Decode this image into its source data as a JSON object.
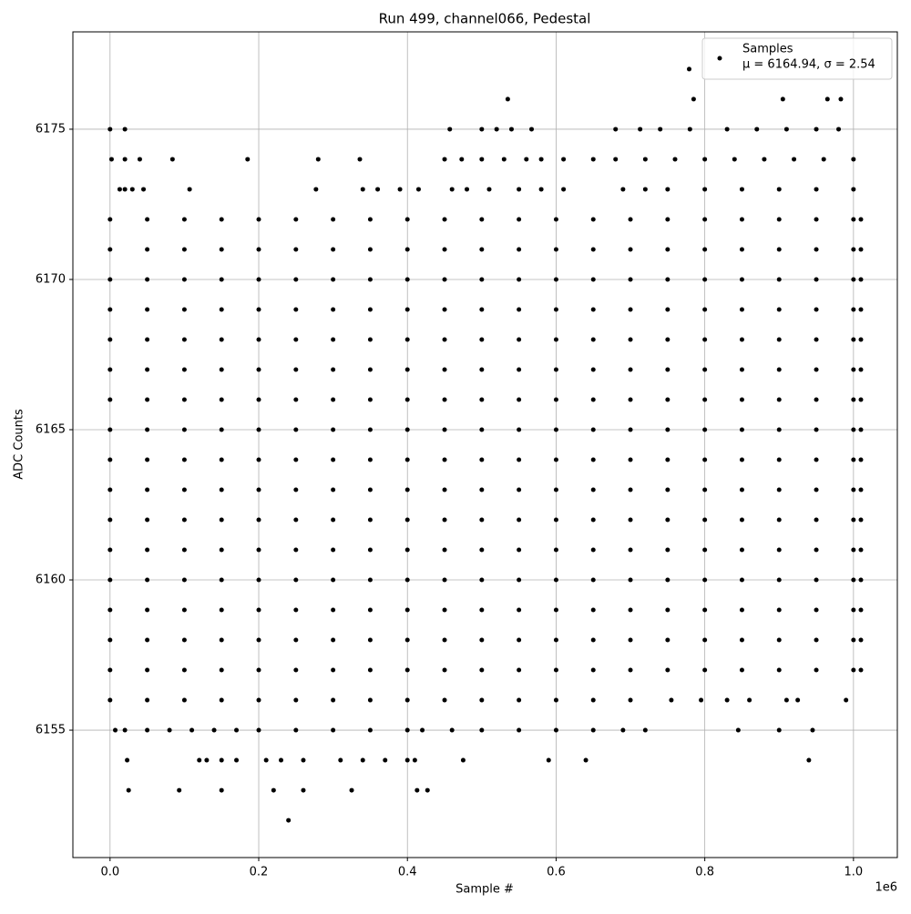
{
  "chart_data": {
    "type": "scatter",
    "title": "Run 499, channel066, Pedestal",
    "xlabel": "Sample #",
    "ylabel": "ADC Counts",
    "x_offset_label": "1e6",
    "xlim": [
      -0.05,
      1.059
    ],
    "ylim": [
      6150.76,
      6178.24
    ],
    "xticks": [
      {
        "value": 0,
        "label": "0.0"
      },
      0.2,
      0.4,
      0.6,
      0.8,
      {
        "value": 1,
        "label": "1.0"
      }
    ],
    "yticks": [
      6155,
      6160,
      6165,
      6170,
      6175
    ],
    "grid": true,
    "legend": "upper right",
    "legend_note": "μ = 6164.94, σ = 2.54",
    "series": [
      {
        "name": "Samples",
        "color": "#000000",
        "x": [
          0,
          0.05,
          0.1,
          0.15,
          0.2,
          0.25,
          0.3,
          0.35,
          0.4,
          0.45,
          0.5,
          0.55,
          0.6,
          0.65,
          0.7,
          0.75,
          0.8,
          0.85,
          0.9,
          0.95,
          1,
          1.01,
          0,
          0.05,
          0.1,
          0.15,
          0.2,
          0.25,
          0.3,
          0.35,
          0.4,
          0.45,
          0.5,
          0.55,
          0.6,
          0.65,
          0.7,
          0.75,
          0.8,
          0.85,
          0.9,
          0.95,
          1,
          1.01,
          0,
          0.05,
          0.1,
          0.15,
          0.2,
          0.25,
          0.3,
          0.35,
          0.4,
          0.45,
          0.5,
          0.55,
          0.6,
          0.65,
          0.7,
          0.75,
          0.8,
          0.85,
          0.9,
          0.95,
          1,
          1.01,
          0,
          0.05,
          0.1,
          0.15,
          0.2,
          0.25,
          0.3,
          0.35,
          0.4,
          0.45,
          0.5,
          0.55,
          0.6,
          0.65,
          0.7,
          0.75,
          0.8,
          0.85,
          0.9,
          0.95,
          1,
          1.01,
          0,
          0.05,
          0.1,
          0.15,
          0.2,
          0.25,
          0.3,
          0.35,
          0.4,
          0.45,
          0.5,
          0.55,
          0.6,
          0.65,
          0.7,
          0.75,
          0.8,
          0.85,
          0.9,
          0.95,
          1,
          1.01,
          0,
          0.05,
          0.1,
          0.15,
          0.2,
          0.25,
          0.3,
          0.35,
          0.4,
          0.45,
          0.5,
          0.55,
          0.6,
          0.65,
          0.7,
          0.75,
          0.8,
          0.85,
          0.9,
          0.95,
          1,
          1.01,
          0,
          0.05,
          0.1,
          0.15,
          0.2,
          0.25,
          0.3,
          0.35,
          0.4,
          0.45,
          0.5,
          0.55,
          0.6,
          0.65,
          0.7,
          0.75,
          0.8,
          0.85,
          0.9,
          0.95,
          1,
          1.01,
          0,
          0.05,
          0.1,
          0.15,
          0.2,
          0.25,
          0.3,
          0.35,
          0.4,
          0.45,
          0.5,
          0.55,
          0.6,
          0.65,
          0.7,
          0.75,
          0.8,
          0.85,
          0.9,
          0.95,
          1,
          1.01,
          0,
          0.05,
          0.1,
          0.15,
          0.2,
          0.25,
          0.3,
          0.35,
          0.4,
          0.45,
          0.5,
          0.55,
          0.6,
          0.65,
          0.7,
          0.75,
          0.8,
          0.85,
          0.9,
          0.95,
          1,
          1.01,
          0,
          0.05,
          0.1,
          0.15,
          0.2,
          0.25,
          0.3,
          0.35,
          0.4,
          0.45,
          0.5,
          0.55,
          0.6,
          0.65,
          0.7,
          0.75,
          0.8,
          0.85,
          0.9,
          0.95,
          1,
          1.01,
          0,
          0.05,
          0.1,
          0.15,
          0.2,
          0.25,
          0.3,
          0.35,
          0.4,
          0.45,
          0.5,
          0.55,
          0.6,
          0.65,
          0.7,
          0.75,
          0.8,
          0.85,
          0.9,
          0.95,
          1,
          1.01,
          0,
          0.05,
          0.1,
          0.15,
          0.2,
          0.25,
          0.3,
          0.35,
          0.4,
          0.45,
          0.5,
          0.55,
          0.6,
          0.65,
          0.7,
          0.75,
          0.8,
          0.85,
          0.9,
          0.95,
          1,
          1.01,
          0,
          0.05,
          0.1,
          0.15,
          0.2,
          0.25,
          0.3,
          0.35,
          0.4,
          0.45,
          0.5,
          0.55,
          0.6,
          0.65,
          0.7,
          0.75,
          0.8,
          0.85,
          0.9,
          0.95,
          1,
          1.01,
          0,
          0.05,
          0.1,
          0.15,
          0.2,
          0.25,
          0.3,
          0.35,
          0.4,
          0.45,
          0.5,
          0.55,
          0.6,
          0.65,
          0.7,
          0.75,
          0.8,
          0.85,
          0.9,
          0.95,
          1,
          1.01,
          0,
          0.05,
          0.1,
          0.15,
          0.2,
          0.25,
          0.3,
          0.35,
          0.4,
          0.45,
          0.5,
          0.55,
          0.6,
          0.65,
          0.7,
          0.75,
          0.8,
          0.85,
          0.9,
          0.95,
          1,
          1.01,
          0,
          0.05,
          0.1,
          0.15,
          0.2,
          0.25,
          0.3,
          0.35,
          0.4,
          0.45,
          0.5,
          0.55,
          0.6,
          0.65,
          0.7,
          0.75,
          0.8,
          0.85,
          0.9,
          0.95,
          1,
          1.01,
          0,
          0.05,
          0.1,
          0.15,
          0.2,
          0.25,
          0.3,
          0.35,
          0.4,
          0.45,
          0.5,
          0.55,
          0.6,
          0.65,
          0.7,
          0.755,
          0.795,
          0.83,
          0.86,
          0.91,
          0.925,
          0.99,
          0.007,
          0.02,
          0.05,
          0.08,
          0.11,
          0.14,
          0.17,
          0.2,
          0.25,
          0.3,
          0.35,
          0.4,
          0.42,
          0.46,
          0.5,
          0.55,
          0.6,
          0.65,
          0.69,
          0.72,
          0.845,
          0.9,
          0.945,
          0.023,
          0.12,
          0.13,
          0.15,
          0.17,
          0.21,
          0.23,
          0.26,
          0.31,
          0.34,
          0.37,
          0.4,
          0.41,
          0.475,
          0.59,
          0.64,
          0.94,
          0.025,
          0.093,
          0.15,
          0.22,
          0.26,
          0.325,
          0.413,
          0.427,
          0.24,
          0.013,
          0.02,
          0.03,
          0.045,
          0.107,
          0.277,
          0.34,
          0.36,
          0.39,
          0.415,
          0.46,
          0.48,
          0.51,
          0.55,
          0.58,
          0.61,
          0.69,
          0.72,
          0.75,
          0.8,
          0.85,
          0.9,
          0.95,
          1,
          0.002,
          0.02,
          0.04,
          0.084,
          0.185,
          0.28,
          0.336,
          0.45,
          0.473,
          0.5,
          0.53,
          0.56,
          0.58,
          0.61,
          0.65,
          0.68,
          0.72,
          0.76,
          0.8,
          0.84,
          0.88,
          0.92,
          0.96,
          1,
          0,
          0.02,
          0.457,
          0.5,
          0.52,
          0.54,
          0.567,
          0.68,
          0.713,
          0.74,
          0.78,
          0.83,
          0.87,
          0.91,
          0.95,
          0.98,
          0.535,
          0.785,
          0.905,
          0.965,
          0.983,
          0.779
        ],
        "values": [
          6157,
          6157,
          6157,
          6157,
          6157,
          6157,
          6157,
          6157,
          6157,
          6157,
          6157,
          6157,
          6157,
          6157,
          6157,
          6157,
          6157,
          6157,
          6157,
          6157,
          6157,
          6157,
          6158,
          6158,
          6158,
          6158,
          6158,
          6158,
          6158,
          6158,
          6158,
          6158,
          6158,
          6158,
          6158,
          6158,
          6158,
          6158,
          6158,
          6158,
          6158,
          6158,
          6158,
          6158,
          6159,
          6159,
          6159,
          6159,
          6159,
          6159,
          6159,
          6159,
          6159,
          6159,
          6159,
          6159,
          6159,
          6159,
          6159,
          6159,
          6159,
          6159,
          6159,
          6159,
          6159,
          6159,
          6160,
          6160,
          6160,
          6160,
          6160,
          6160,
          6160,
          6160,
          6160,
          6160,
          6160,
          6160,
          6160,
          6160,
          6160,
          6160,
          6160,
          6160,
          6160,
          6160,
          6160,
          6160,
          6161,
          6161,
          6161,
          6161,
          6161,
          6161,
          6161,
          6161,
          6161,
          6161,
          6161,
          6161,
          6161,
          6161,
          6161,
          6161,
          6161,
          6161,
          6161,
          6161,
          6161,
          6161,
          6162,
          6162,
          6162,
          6162,
          6162,
          6162,
          6162,
          6162,
          6162,
          6162,
          6162,
          6162,
          6162,
          6162,
          6162,
          6162,
          6162,
          6162,
          6162,
          6162,
          6162,
          6162,
          6163,
          6163,
          6163,
          6163,
          6163,
          6163,
          6163,
          6163,
          6163,
          6163,
          6163,
          6163,
          6163,
          6163,
          6163,
          6163,
          6163,
          6163,
          6163,
          6163,
          6163,
          6163,
          6164,
          6164,
          6164,
          6164,
          6164,
          6164,
          6164,
          6164,
          6164,
          6164,
          6164,
          6164,
          6164,
          6164,
          6164,
          6164,
          6164,
          6164,
          6164,
          6164,
          6164,
          6164,
          6165,
          6165,
          6165,
          6165,
          6165,
          6165,
          6165,
          6165,
          6165,
          6165,
          6165,
          6165,
          6165,
          6165,
          6165,
          6165,
          6165,
          6165,
          6165,
          6165,
          6165,
          6165,
          6166,
          6166,
          6166,
          6166,
          6166,
          6166,
          6166,
          6166,
          6166,
          6166,
          6166,
          6166,
          6166,
          6166,
          6166,
          6166,
          6166,
          6166,
          6166,
          6166,
          6166,
          6166,
          6167,
          6167,
          6167,
          6167,
          6167,
          6167,
          6167,
          6167,
          6167,
          6167,
          6167,
          6167,
          6167,
          6167,
          6167,
          6167,
          6167,
          6167,
          6167,
          6167,
          6167,
          6167,
          6168,
          6168,
          6168,
          6168,
          6168,
          6168,
          6168,
          6168,
          6168,
          6168,
          6168,
          6168,
          6168,
          6168,
          6168,
          6168,
          6168,
          6168,
          6168,
          6168,
          6168,
          6168,
          6169,
          6169,
          6169,
          6169,
          6169,
          6169,
          6169,
          6169,
          6169,
          6169,
          6169,
          6169,
          6169,
          6169,
          6169,
          6169,
          6169,
          6169,
          6169,
          6169,
          6169,
          6169,
          6170,
          6170,
          6170,
          6170,
          6170,
          6170,
          6170,
          6170,
          6170,
          6170,
          6170,
          6170,
          6170,
          6170,
          6170,
          6170,
          6170,
          6170,
          6170,
          6170,
          6170,
          6170,
          6171,
          6171,
          6171,
          6171,
          6171,
          6171,
          6171,
          6171,
          6171,
          6171,
          6171,
          6171,
          6171,
          6171,
          6171,
          6171,
          6171,
          6171,
          6171,
          6171,
          6171,
          6171,
          6172,
          6172,
          6172,
          6172,
          6172,
          6172,
          6172,
          6172,
          6172,
          6172,
          6172,
          6172,
          6172,
          6172,
          6172,
          6172,
          6172,
          6172,
          6172,
          6172,
          6172,
          6172,
          6156,
          6156,
          6156,
          6156,
          6156,
          6156,
          6156,
          6156,
          6156,
          6156,
          6156,
          6156,
          6156,
          6156,
          6156,
          6156,
          6156,
          6156,
          6156,
          6156,
          6156,
          6156,
          6155,
          6155,
          6155,
          6155,
          6155,
          6155,
          6155,
          6155,
          6155,
          6155,
          6155,
          6155,
          6155,
          6155,
          6155,
          6155,
          6155,
          6155,
          6155,
          6155,
          6155,
          6155,
          6155,
          6154,
          6154,
          6154,
          6154,
          6154,
          6154,
          6154,
          6154,
          6154,
          6154,
          6154,
          6154,
          6154,
          6154,
          6154,
          6154,
          6154,
          6153,
          6153,
          6153,
          6153,
          6153,
          6153,
          6153,
          6153,
          6152,
          6173,
          6173,
          6173,
          6173,
          6173,
          6173,
          6173,
          6173,
          6173,
          6173,
          6173,
          6173,
          6173,
          6173,
          6173,
          6173,
          6173,
          6173,
          6173,
          6173,
          6173,
          6173,
          6173,
          6173,
          6174,
          6174,
          6174,
          6174,
          6174,
          6174,
          6174,
          6174,
          6174,
          6174,
          6174,
          6174,
          6174,
          6174,
          6174,
          6174,
          6174,
          6174,
          6174,
          6174,
          6174,
          6174,
          6174,
          6174,
          6175,
          6175,
          6175,
          6175,
          6175,
          6175,
          6175,
          6175,
          6175,
          6175,
          6175,
          6175,
          6175,
          6175,
          6175,
          6175,
          6176,
          6176,
          6176,
          6176,
          6176,
          6177
        ]
      }
    ]
  }
}
